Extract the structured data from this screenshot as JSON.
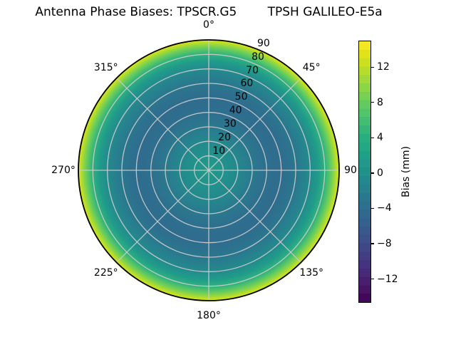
{
  "figure": {
    "title": "Antenna Phase Biases: TPSCR.G5        TPSH GALILEO-E5a"
  },
  "chart_data": {
    "type": "heatmap",
    "projection": "polar",
    "title": "Antenna Phase Biases: TPSCR.G5        TPSH GALILEO-E5a",
    "antenna": "TPSCR.G5",
    "radome": "TPSH",
    "signal": "GALILEO-E5a",
    "theta_labels": [
      {
        "angle_deg": 0,
        "label": "0°"
      },
      {
        "angle_deg": 45,
        "label": "45°"
      },
      {
        "angle_deg": 90,
        "label": "90"
      },
      {
        "angle_deg": 135,
        "label": "135°"
      },
      {
        "angle_deg": 180,
        "label": "180°"
      },
      {
        "angle_deg": 225,
        "label": "225°"
      },
      {
        "angle_deg": 270,
        "label": "270°"
      },
      {
        "angle_deg": 315,
        "label": "315°"
      }
    ],
    "r_ticks": [
      10,
      20,
      30,
      40,
      50,
      60,
      70,
      80,
      90
    ],
    "r_tick_angle_deg": 22.5,
    "r_max": 90,
    "grid": true,
    "grid_color": "#cbcbcb",
    "disk_edge_color": "#000000",
    "background_color": "#ffffff",
    "colorbar": {
      "label": "Bias (mm)",
      "side": "right",
      "ticks": [
        12,
        8,
        4,
        0,
        -4,
        -8,
        -12
      ],
      "tick_labels": [
        "12",
        "8",
        "4",
        "0",
        "−4",
        "−8",
        "−12"
      ],
      "vmin": -14.7,
      "vmax": 15.0,
      "n_bands": 31,
      "colormap": "viridis",
      "colormap_stops": [
        "#440154",
        "#48186a",
        "#472d7b",
        "#424086",
        "#3b528b",
        "#33638d",
        "#2c728e",
        "#26828e",
        "#21918c",
        "#1fa188",
        "#28ae80",
        "#3fbc73",
        "#5ec962",
        "#84d44b",
        "#addc30",
        "#d8e219",
        "#fde725"
      ]
    },
    "radial_profile_mm": [
      {
        "zenith_deg": 0,
        "bias_mm": 1.2
      },
      {
        "zenith_deg": 10,
        "bias_mm": 0.4
      },
      {
        "zenith_deg": 20,
        "bias_mm": -1.0
      },
      {
        "zenith_deg": 30,
        "bias_mm": -2.8
      },
      {
        "zenith_deg": 40,
        "bias_mm": -4.0
      },
      {
        "zenith_deg": 50,
        "bias_mm": -4.3
      },
      {
        "zenith_deg": 60,
        "bias_mm": -3.0
      },
      {
        "zenith_deg": 70,
        "bias_mm": -0.6
      },
      {
        "zenith_deg": 75,
        "bias_mm": 1.3
      },
      {
        "zenith_deg": 80,
        "bias_mm": 4.5
      },
      {
        "zenith_deg": 84,
        "bias_mm": 8.0
      },
      {
        "zenith_deg": 87,
        "bias_mm": 11.0
      },
      {
        "zenith_deg": 89,
        "bias_mm": 13.0
      },
      {
        "zenith_deg": 90,
        "bias_mm": 14.0
      }
    ]
  }
}
